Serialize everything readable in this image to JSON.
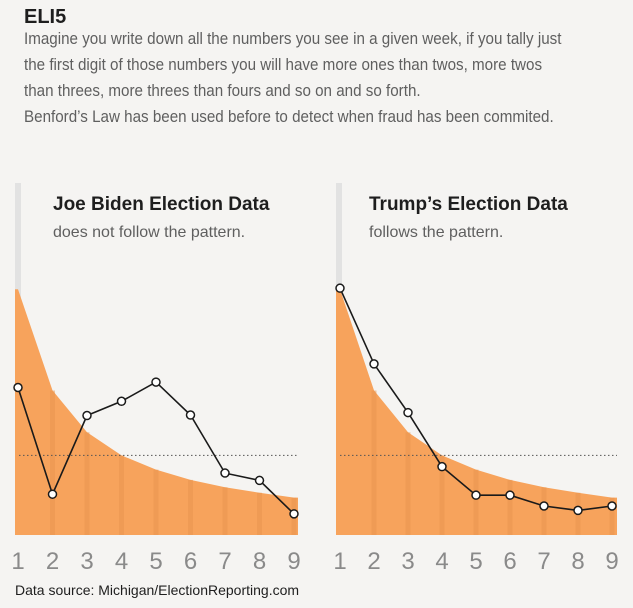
{
  "header": {
    "title": "ELI5",
    "lines": [
      "Imagine you write down all the numbers you see in a given week, if you tally just",
      "the first digit of those numbers you will have more ones than twos, more twos",
      "than threes, more threes than fours and so on and so forth.",
      "Benford’s Law has been used before to detect when fraud has been commited."
    ]
  },
  "source": "Data source: Michigan/ElectionReporting.com",
  "colors": {
    "area": "#f7a35c",
    "line": "#1a1a1a",
    "marker_fill": "#ffffff",
    "tick_label": "#8a8a8a",
    "dotted_ref": "#555555",
    "divider": "#e2e2e2"
  },
  "chart_data": [
    {
      "type": "line",
      "title": "Joe Biden Election Data",
      "subtitle": "does not follow the pattern.",
      "x": [
        1,
        2,
        3,
        4,
        5,
        6,
        7,
        8,
        9
      ],
      "series": [
        {
          "values": [
            30,
            8.3,
            24.3,
            27.2,
            31.1,
            24.4,
            12.6,
            11.1,
            4.3
          ]
        }
      ],
      "reference_area": [
        50,
        29.4,
        20.9,
        16.2,
        13.3,
        11.2,
        9.7,
        8.6,
        7.6
      ],
      "reference_line": 16.2,
      "ylim": [
        0,
        60
      ]
    },
    {
      "type": "line",
      "title": "Trump’s Election Data",
      "subtitle": "follows the pattern.",
      "x": [
        1,
        2,
        3,
        4,
        5,
        6,
        7,
        8,
        9
      ],
      "series": [
        {
          "values": [
            50.2,
            34.8,
            24.9,
            13.9,
            8.1,
            8.1,
            5.9,
            5.0,
            5.9
          ]
        }
      ],
      "reference_area": [
        50,
        29.4,
        20.9,
        16.2,
        13.3,
        11.2,
        9.7,
        8.6,
        7.6
      ],
      "reference_line": 16.2,
      "ylim": [
        0,
        60
      ]
    }
  ]
}
